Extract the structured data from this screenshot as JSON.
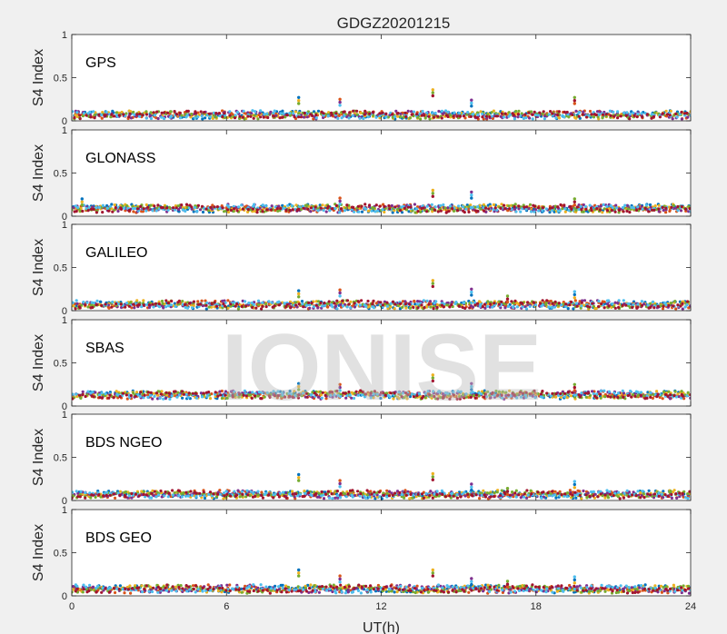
{
  "figure": {
    "title": "GDGZ20201215",
    "watermark": "IONISE"
  },
  "chart_data": [
    {
      "type": "scatter",
      "title": "GPS",
      "ylabel": "S4 Index",
      "xlabel": "",
      "xlim": [
        0,
        24
      ],
      "ylim": [
        0,
        1
      ],
      "yticks": [
        {
          "value": 0,
          "label": "0"
        },
        {
          "value": 0.5,
          "label": "0.5"
        },
        {
          "value": 1,
          "label": "1"
        }
      ],
      "xticks": [],
      "baseline": 0.07,
      "spikes": [
        {
          "x": 8.8,
          "y": 0.27
        },
        {
          "x": 10.4,
          "y": 0.25
        },
        {
          "x": 14.0,
          "y": 0.36
        },
        {
          "x": 15.5,
          "y": 0.24
        },
        {
          "x": 19.5,
          "y": 0.27
        }
      ]
    },
    {
      "type": "scatter",
      "title": "GLONASS",
      "ylabel": "S4 Index",
      "xlabel": "",
      "xlim": [
        0,
        24
      ],
      "ylim": [
        0,
        1
      ],
      "yticks": [
        {
          "value": 0,
          "label": "0"
        },
        {
          "value": 0.5,
          "label": "0.5"
        },
        {
          "value": 1,
          "label": "1"
        }
      ],
      "xticks": [],
      "baseline": 0.09,
      "spikes": [
        {
          "x": 0.4,
          "y": 0.2
        },
        {
          "x": 10.4,
          "y": 0.21
        },
        {
          "x": 14.0,
          "y": 0.3
        },
        {
          "x": 15.5,
          "y": 0.28
        },
        {
          "x": 19.5,
          "y": 0.2
        }
      ]
    },
    {
      "type": "scatter",
      "title": "GALILEO",
      "ylabel": "S4 Index",
      "xlabel": "",
      "xlim": [
        0,
        24
      ],
      "ylim": [
        0,
        1
      ],
      "yticks": [
        {
          "value": 0,
          "label": "0"
        },
        {
          "value": 0.5,
          "label": "0.5"
        },
        {
          "value": 1,
          "label": "1"
        }
      ],
      "xticks": [],
      "baseline": 0.07,
      "spikes": [
        {
          "x": 8.8,
          "y": 0.23
        },
        {
          "x": 10.4,
          "y": 0.24
        },
        {
          "x": 14.0,
          "y": 0.35
        },
        {
          "x": 15.5,
          "y": 0.25
        },
        {
          "x": 16.9,
          "y": 0.17
        },
        {
          "x": 19.5,
          "y": 0.22
        }
      ]
    },
    {
      "type": "scatter",
      "title": "SBAS",
      "ylabel": "S4 Index",
      "xlabel": "",
      "xlim": [
        0,
        24
      ],
      "ylim": [
        0,
        1
      ],
      "yticks": [
        {
          "value": 0,
          "label": "0"
        },
        {
          "value": 0.5,
          "label": "0.5"
        },
        {
          "value": 1,
          "label": "1"
        }
      ],
      "xticks": [],
      "baseline": 0.13,
      "spikes": [
        {
          "x": 8.8,
          "y": 0.26
        },
        {
          "x": 10.4,
          "y": 0.25
        },
        {
          "x": 14.0,
          "y": 0.36
        },
        {
          "x": 15.5,
          "y": 0.26
        },
        {
          "x": 19.5,
          "y": 0.25
        }
      ]
    },
    {
      "type": "scatter",
      "title": "BDS NGEO",
      "ylabel": "S4 Index",
      "xlabel": "",
      "xlim": [
        0,
        24
      ],
      "ylim": [
        0,
        1
      ],
      "yticks": [
        {
          "value": 0,
          "label": "0"
        },
        {
          "value": 0.5,
          "label": "0.5"
        },
        {
          "value": 1,
          "label": "1"
        }
      ],
      "xticks": [],
      "baseline": 0.07,
      "spikes": [
        {
          "x": 8.8,
          "y": 0.3
        },
        {
          "x": 10.4,
          "y": 0.23
        },
        {
          "x": 14.0,
          "y": 0.31
        },
        {
          "x": 15.5,
          "y": 0.19
        },
        {
          "x": 16.9,
          "y": 0.14
        },
        {
          "x": 19.5,
          "y": 0.22
        }
      ]
    },
    {
      "type": "scatter",
      "title": "BDS GEO",
      "ylabel": "S4 Index",
      "xlabel": "UT(h)",
      "xlim": [
        0,
        24
      ],
      "ylim": [
        0,
        1
      ],
      "yticks": [
        {
          "value": 0,
          "label": "0"
        },
        {
          "value": 0.5,
          "label": "0.5"
        },
        {
          "value": 1,
          "label": "1"
        }
      ],
      "xticks": [
        {
          "value": 0,
          "label": "0"
        },
        {
          "value": 6,
          "label": "6"
        },
        {
          "value": 12,
          "label": "12"
        },
        {
          "value": 18,
          "label": "18"
        },
        {
          "value": 24,
          "label": "24"
        }
      ],
      "baseline": 0.08,
      "spikes": [
        {
          "x": 8.8,
          "y": 0.3
        },
        {
          "x": 10.4,
          "y": 0.23
        },
        {
          "x": 14.0,
          "y": 0.3
        },
        {
          "x": 15.5,
          "y": 0.2
        },
        {
          "x": 16.9,
          "y": 0.17
        },
        {
          "x": 19.5,
          "y": 0.22
        }
      ]
    }
  ],
  "series_colors": [
    "#0072bd",
    "#d95319",
    "#edb120",
    "#7e2f8e",
    "#77ac30",
    "#4dbeee",
    "#a2142f"
  ]
}
